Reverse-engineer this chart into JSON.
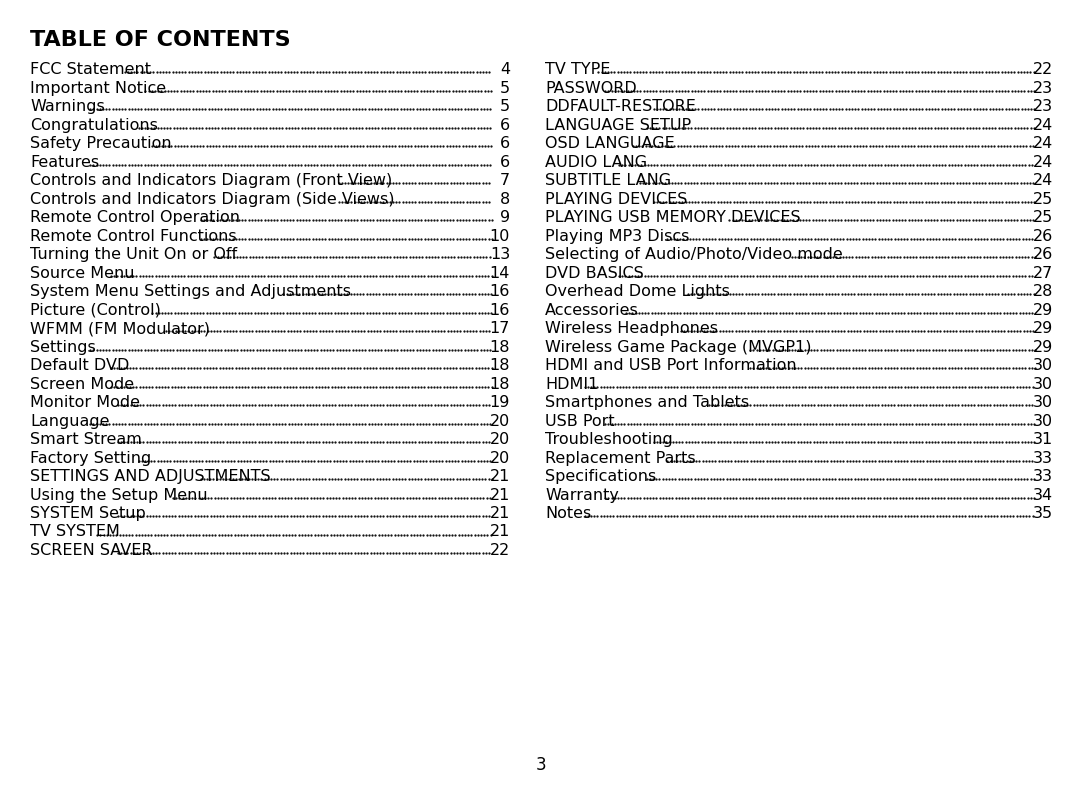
{
  "title": "TABLE OF CONTENTS",
  "background_color": "#ffffff",
  "text_color": "#000000",
  "page_number": "3",
  "left_column": [
    {
      "text": "FCC Statement",
      "page": "4",
      "bold": false
    },
    {
      "text": "Important Notice",
      "page": "5",
      "bold": false
    },
    {
      "text": "Warnings",
      "page": "5",
      "bold": false
    },
    {
      "text": "Congratulations",
      "page": "6",
      "bold": false
    },
    {
      "text": "Safety Precaution",
      "page": "6",
      "bold": false
    },
    {
      "text": "Features",
      "page": "6",
      "bold": false
    },
    {
      "text": "Controls and Indicators Diagram (Front View)",
      "page": "7",
      "bold": false
    },
    {
      "text": "Controls and Indicators Diagram (Side Views)",
      "page": "8",
      "bold": false
    },
    {
      "text": "Remote Control Operation",
      "page": "9",
      "bold": false
    },
    {
      "text": "Remote Control Functions",
      "page": "10",
      "bold": false
    },
    {
      "text": "Turning the Unit On or Off",
      "page": "13",
      "bold": false
    },
    {
      "text": "Source Menu",
      "page": "14",
      "bold": false
    },
    {
      "text": "System Menu Settings and Adjustments",
      "page": "16",
      "bold": false
    },
    {
      "text": "Picture (Control)",
      "page": "16",
      "bold": false
    },
    {
      "text": "WFMM (FM Modulator)",
      "page": "17",
      "bold": false
    },
    {
      "text": "Settings",
      "page": "18",
      "bold": false
    },
    {
      "text": "Default DVD",
      "page": "18",
      "bold": false
    },
    {
      "text": "Screen Mode",
      "page": "18",
      "bold": false
    },
    {
      "text": "Monitor Mode",
      "page": "19",
      "bold": false
    },
    {
      "text": "Language",
      "page": "20",
      "bold": false
    },
    {
      "text": "Smart Stream",
      "page": "20",
      "bold": false
    },
    {
      "text": "Factory Setting",
      "page": "20",
      "bold": false
    },
    {
      "text": "SETTINGS AND ADJUSTMENTS",
      "page": "21",
      "bold": false
    },
    {
      "text": "Using the Setup Menu",
      "page": "21",
      "bold": false
    },
    {
      "text": "SYSTEM Setup",
      "page": "21",
      "bold": false
    },
    {
      "text": "TV SYSTEM",
      "page": "21",
      "bold": false
    },
    {
      "text": "SCREEN SAVER",
      "page": "22",
      "bold": false
    }
  ],
  "right_column": [
    {
      "text": "TV TYPE",
      "page": "22",
      "bold": false
    },
    {
      "text": "PASSWORD",
      "page": "23",
      "bold": false
    },
    {
      "text": "DDFAULT-RESTORE",
      "page": "23",
      "bold": false
    },
    {
      "text": "LANGUAGE SETUP",
      "page": "24",
      "bold": false
    },
    {
      "text": "OSD LANGUAGE",
      "page": "24",
      "bold": false
    },
    {
      "text": "AUDIO LANG",
      "page": "24",
      "bold": false
    },
    {
      "text": "SUBTITLE LANG",
      "page": "24",
      "bold": false
    },
    {
      "text": "PLAYING DEVICES",
      "page": "25",
      "bold": false
    },
    {
      "text": "PLAYING USB MEMORY DEVICES",
      "page": "25",
      "bold": false
    },
    {
      "text": "Playing MP3 Discs",
      "page": "26",
      "bold": false
    },
    {
      "text": "Selecting of Audio/Photo/Video mode",
      "page": "26",
      "bold": false
    },
    {
      "text": "DVD BASICS",
      "page": "27",
      "bold": false
    },
    {
      "text": "Overhead Dome Lights",
      "page": "28",
      "bold": false
    },
    {
      "text": "Accessories",
      "page": "29",
      "bold": false
    },
    {
      "text": "Wireless Headphones",
      "page": "29",
      "bold": false
    },
    {
      "text": "Wireless Game Package (MVGP1)",
      "page": "29",
      "bold": false
    },
    {
      "text": "HDMI and USB Port Information",
      "page": "30",
      "bold": false
    },
    {
      "text": "HDMI1",
      "page": "30",
      "bold": false
    },
    {
      "text": "Smartphones and Tablets",
      "page": "30",
      "bold": false
    },
    {
      "text": "USB Port",
      "page": "30",
      "bold": false
    },
    {
      "text": "Troubleshooting",
      "page": "31",
      "bold": false
    },
    {
      "text": "Replacement Parts",
      "page": "33",
      "bold": false
    },
    {
      "text": "Specifications",
      "page": "33",
      "bold": false
    },
    {
      "text": "Warranty",
      "page": "34",
      "bold": false
    },
    {
      "text": "Notes",
      "page": "35",
      "bold": false
    }
  ]
}
